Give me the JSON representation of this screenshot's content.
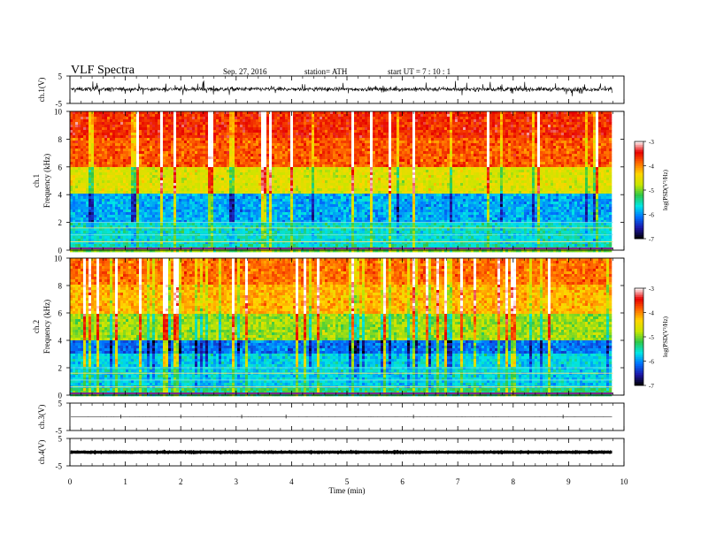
{
  "header": {
    "title": "VLF  Spectra",
    "date": "Sep. 27, 2016",
    "station": "station= ATH",
    "start": "start  UT  =    7   : 10 : 1"
  },
  "chart_data": [
    {
      "id": "ch1-waveform",
      "type": "line",
      "ylabel": "ch.1(V)",
      "ylim": [
        -5,
        5
      ],
      "yticks": [
        "5",
        "-5"
      ],
      "signal": "dense noise-like trace centered near 0 V",
      "mean": 0.2,
      "amplitude": 2.2
    },
    {
      "id": "ch1-spectrogram",
      "type": "heatmap",
      "ylabel": "ch.1\nFrequency  (kHz)",
      "ylim": [
        0,
        10
      ],
      "yticks": [
        "0",
        "2",
        "4",
        "6",
        "8",
        "10"
      ],
      "zlabel": "log(PSD(V²/Hz)",
      "zlim": [
        -7,
        -3
      ],
      "zticks": [
        "-3",
        "-4",
        "-5",
        "-6",
        "-7"
      ],
      "colormap": [
        "#000000",
        "#1e16a8",
        "#0072ff",
        "#00e6e6",
        "#2ec84a",
        "#c8e600",
        "#ffd500",
        "#ff6a00",
        "#e60000",
        "#ffffff"
      ],
      "band_levels_by_freq_khz": [
        {
          "f": [
            0,
            0.5
          ],
          "log_psd": -5.5
        },
        {
          "f": [
            0.5,
            2
          ],
          "log_psd": -5.6
        },
        {
          "f": [
            2,
            4
          ],
          "log_psd": -5.9
        },
        {
          "f": [
            4,
            6
          ],
          "log_psd": -4.6
        },
        {
          "f": [
            6,
            8
          ],
          "log_psd": -3.8
        },
        {
          "f": [
            8,
            10
          ],
          "log_psd": -3.6
        }
      ]
    },
    {
      "id": "ch2-spectrogram",
      "type": "heatmap",
      "ylabel": "ch.2\nFrequency  (kHz)",
      "ylim": [
        0,
        10
      ],
      "yticks": [
        "0",
        "2",
        "4",
        "6",
        "8",
        "10"
      ],
      "zlabel": "log(PSD(V²/Hz)",
      "zlim": [
        -7,
        -3
      ],
      "zticks": [
        "-3",
        "-4",
        "-5",
        "-6",
        "-7"
      ],
      "band_levels_by_freq_khz": [
        {
          "f": [
            0,
            0.5
          ],
          "log_psd": -5.3
        },
        {
          "f": [
            0.5,
            3
          ],
          "log_psd": -5.7
        },
        {
          "f": [
            3,
            4
          ],
          "log_psd": -6.1
        },
        {
          "f": [
            4,
            6
          ],
          "log_psd": -4.9
        },
        {
          "f": [
            6,
            8
          ],
          "log_psd": -4.2
        },
        {
          "f": [
            8,
            10
          ],
          "log_psd": -3.9
        }
      ]
    },
    {
      "id": "ch3-waveform",
      "type": "line",
      "ylabel": "ch.3(V)",
      "ylim": [
        -5,
        5
      ],
      "yticks": [
        "5",
        "-5"
      ],
      "mean": 0.0,
      "amplitude": 0.05
    },
    {
      "id": "ch4-waveform",
      "type": "line",
      "ylabel": "ch.4(V)",
      "ylim": [
        -5,
        5
      ],
      "yticks": [
        "5",
        "-5"
      ],
      "mean": 0.0,
      "amplitude": 0.3
    }
  ],
  "time_axis": {
    "xlabel": "Time  (min)",
    "xlim": [
      0,
      10
    ],
    "ticks": [
      "0",
      "1",
      "2",
      "3",
      "4",
      "5",
      "6",
      "7",
      "8",
      "9",
      "10"
    ],
    "data_end_min": 9.8
  }
}
